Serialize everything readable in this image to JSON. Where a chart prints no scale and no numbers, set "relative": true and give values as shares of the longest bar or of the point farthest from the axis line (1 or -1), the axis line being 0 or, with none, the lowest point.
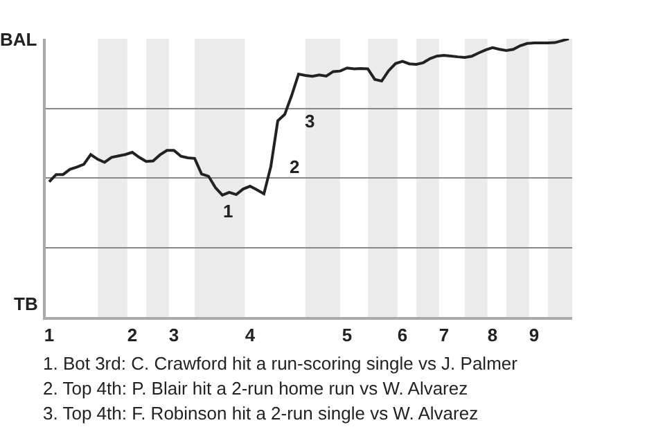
{
  "chart_data": {
    "type": "line",
    "categories": [
      "1",
      null,
      null,
      null,
      null,
      null,
      null,
      null,
      null,
      null,
      null,
      null,
      "2",
      null,
      null,
      null,
      null,
      null,
      "3",
      null,
      null,
      null,
      null,
      null,
      null,
      null,
      null,
      null,
      null,
      "4",
      null,
      null,
      null,
      null,
      null,
      null,
      null,
      null,
      null,
      null,
      null,
      null,
      null,
      "5",
      null,
      null,
      null,
      null,
      null,
      null,
      null,
      "6",
      null,
      null,
      null,
      null,
      null,
      "7",
      null,
      null,
      null,
      null,
      null,
      null,
      "8",
      null,
      null,
      null,
      null,
      null,
      "9",
      null,
      null,
      null,
      null,
      null
    ],
    "relative": true,
    "series": [
      {
        "color": "#222222",
        "values": [
          0.486,
          0.512,
          0.512,
          0.531,
          0.539,
          0.549,
          0.584,
          0.567,
          0.556,
          0.574,
          0.579,
          0.584,
          0.592,
          0.574,
          0.559,
          0.561,
          0.583,
          0.599,
          0.599,
          0.578,
          0.572,
          0.57,
          0.514,
          0.506,
          0.465,
          0.438,
          0.448,
          0.44,
          0.46,
          0.47,
          0.457,
          0.443,
          0.541,
          0.705,
          0.728,
          0.796,
          0.873,
          0.868,
          0.865,
          0.87,
          0.866,
          0.882,
          0.884,
          0.895,
          0.892,
          0.893,
          0.892,
          0.854,
          0.848,
          0.885,
          0.911,
          0.919,
          0.91,
          0.908,
          0.914,
          0.929,
          0.938,
          0.94,
          0.938,
          0.935,
          0.933,
          0.937,
          0.949,
          0.96,
          0.968,
          0.962,
          0.958,
          0.962,
          0.975,
          0.983,
          0.985,
          0.985,
          0.985,
          0.986,
          0.993,
          1.0
        ]
      }
    ],
    "grid": "y",
    "marker": "none",
    "line_style": "solid",
    "annotations": [
      "BAL",
      "TB",
      "1",
      "2",
      "3",
      "1. Bot 3rd: C. Crawford hit a run-scoring single vs J. Palmer",
      "2. Top 4th: P. Blair hit a 2-run home run vs W. Alvarez",
      "3. Top 4th: F. Robinson hit a 2-run single vs W. Alvarez"
    ]
  }
}
